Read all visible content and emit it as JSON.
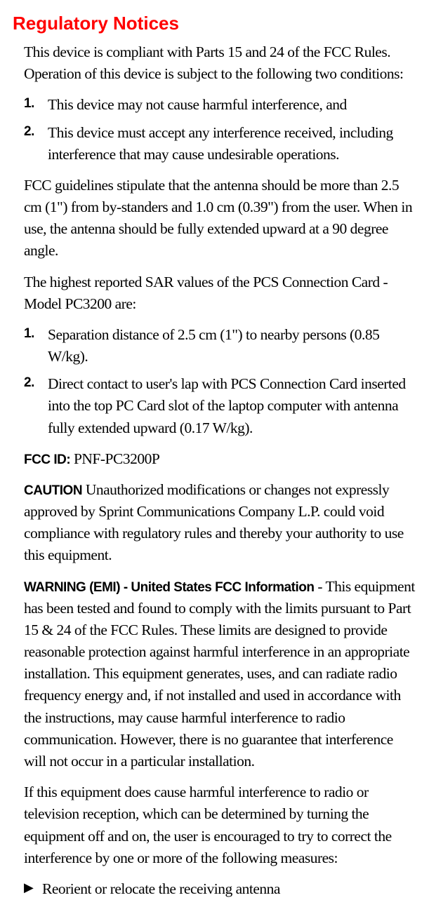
{
  "heading": "Regulatory Notices",
  "intro": "This device is compliant with Parts 15 and 24 of the FCC Rules. Operation of this device is subject to the following two conditions:",
  "list1": {
    "items": [
      {
        "num": "1.",
        "text": "This device may not cause harmful interference, and"
      },
      {
        "num": "2.",
        "text": "This device must accept any interference received, including interference that may cause undesirable operations."
      }
    ]
  },
  "para2": "FCC guidelines stipulate that the antenna should be more than 2.5 cm (1\") from by-standers and 1.0 cm (0.39\") from the user.  When in use, the antenna should be fully extended upward at a 90 degree angle.",
  "para3": "The highest reported SAR values of the PCS Connection Card - Model PC3200 are:",
  "list2": {
    "items": [
      {
        "num": "1.",
        "text": "Separation distance of 2.5 cm (1\") to nearby persons (0.85 W/kg)."
      },
      {
        "num": "2.",
        "text": "Direct contact to user's lap with PCS Connection Card inserted into the top PC Card slot of the laptop computer with antenna fully extended upward (0.17 W/kg)."
      }
    ]
  },
  "fccid_label": "FCC ID:  ",
  "fccid_value": "PNF-PC3200P",
  "caution_label": "CAUTION ",
  "caution_text": "Unauthorized modifications or changes not expressly approved by Sprint Communications Company L.P. could void compliance with regulatory rules and thereby your authority to use this equipment.",
  "warning_label": "WARNING (EMI) - United States FCC Information",
  "warning_text": " - This equipment has been tested and found to comply with the limits pursuant to Part 15 & 24 of the FCC Rules. These limits are designed to provide reasonable protection against harmful interference in an appropriate installation. This equipment generates, uses, and can radiate radio frequency energy and, if not installed and used in accordance with the instructions, may cause harmful interference to radio communication. However, there is no guarantee that interference will not occur in a particular installation.",
  "para6": "If this equipment does cause harmful interference to radio or television reception, which can be determined by turning the equipment off and on, the user is encouraged to try to correct the interference by one or more of the following measures:",
  "bullet1_marker": "▶",
  "bullet1_text": "Reorient or relocate the receiving antenna"
}
